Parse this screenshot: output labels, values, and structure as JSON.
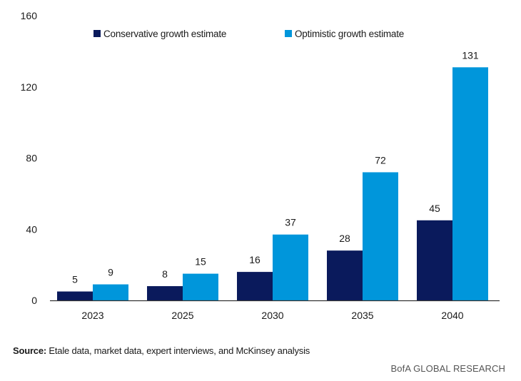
{
  "chart_data": {
    "type": "bar",
    "categories": [
      "2023",
      "2025",
      "2030",
      "2035",
      "2040"
    ],
    "series": [
      {
        "name": "Conservative growth estimate",
        "values": [
          5,
          8,
          16,
          28,
          45
        ],
        "color": "#0a1a5c"
      },
      {
        "name": "Optimistic growth estimate",
        "values": [
          9,
          15,
          37,
          72,
          131
        ],
        "color": "#0096db"
      }
    ],
    "yticks": [
      0,
      40,
      80,
      120,
      160
    ],
    "ylim": [
      0,
      160
    ],
    "title": "",
    "xlabel": "",
    "ylabel": "",
    "grid": false,
    "legend_position": "top"
  },
  "footer": {
    "source_label": "Source:",
    "source_text": " Etale data, market data, expert interviews, and McKinsey analysis",
    "brand": "BofA GLOBAL RESEARCH"
  }
}
